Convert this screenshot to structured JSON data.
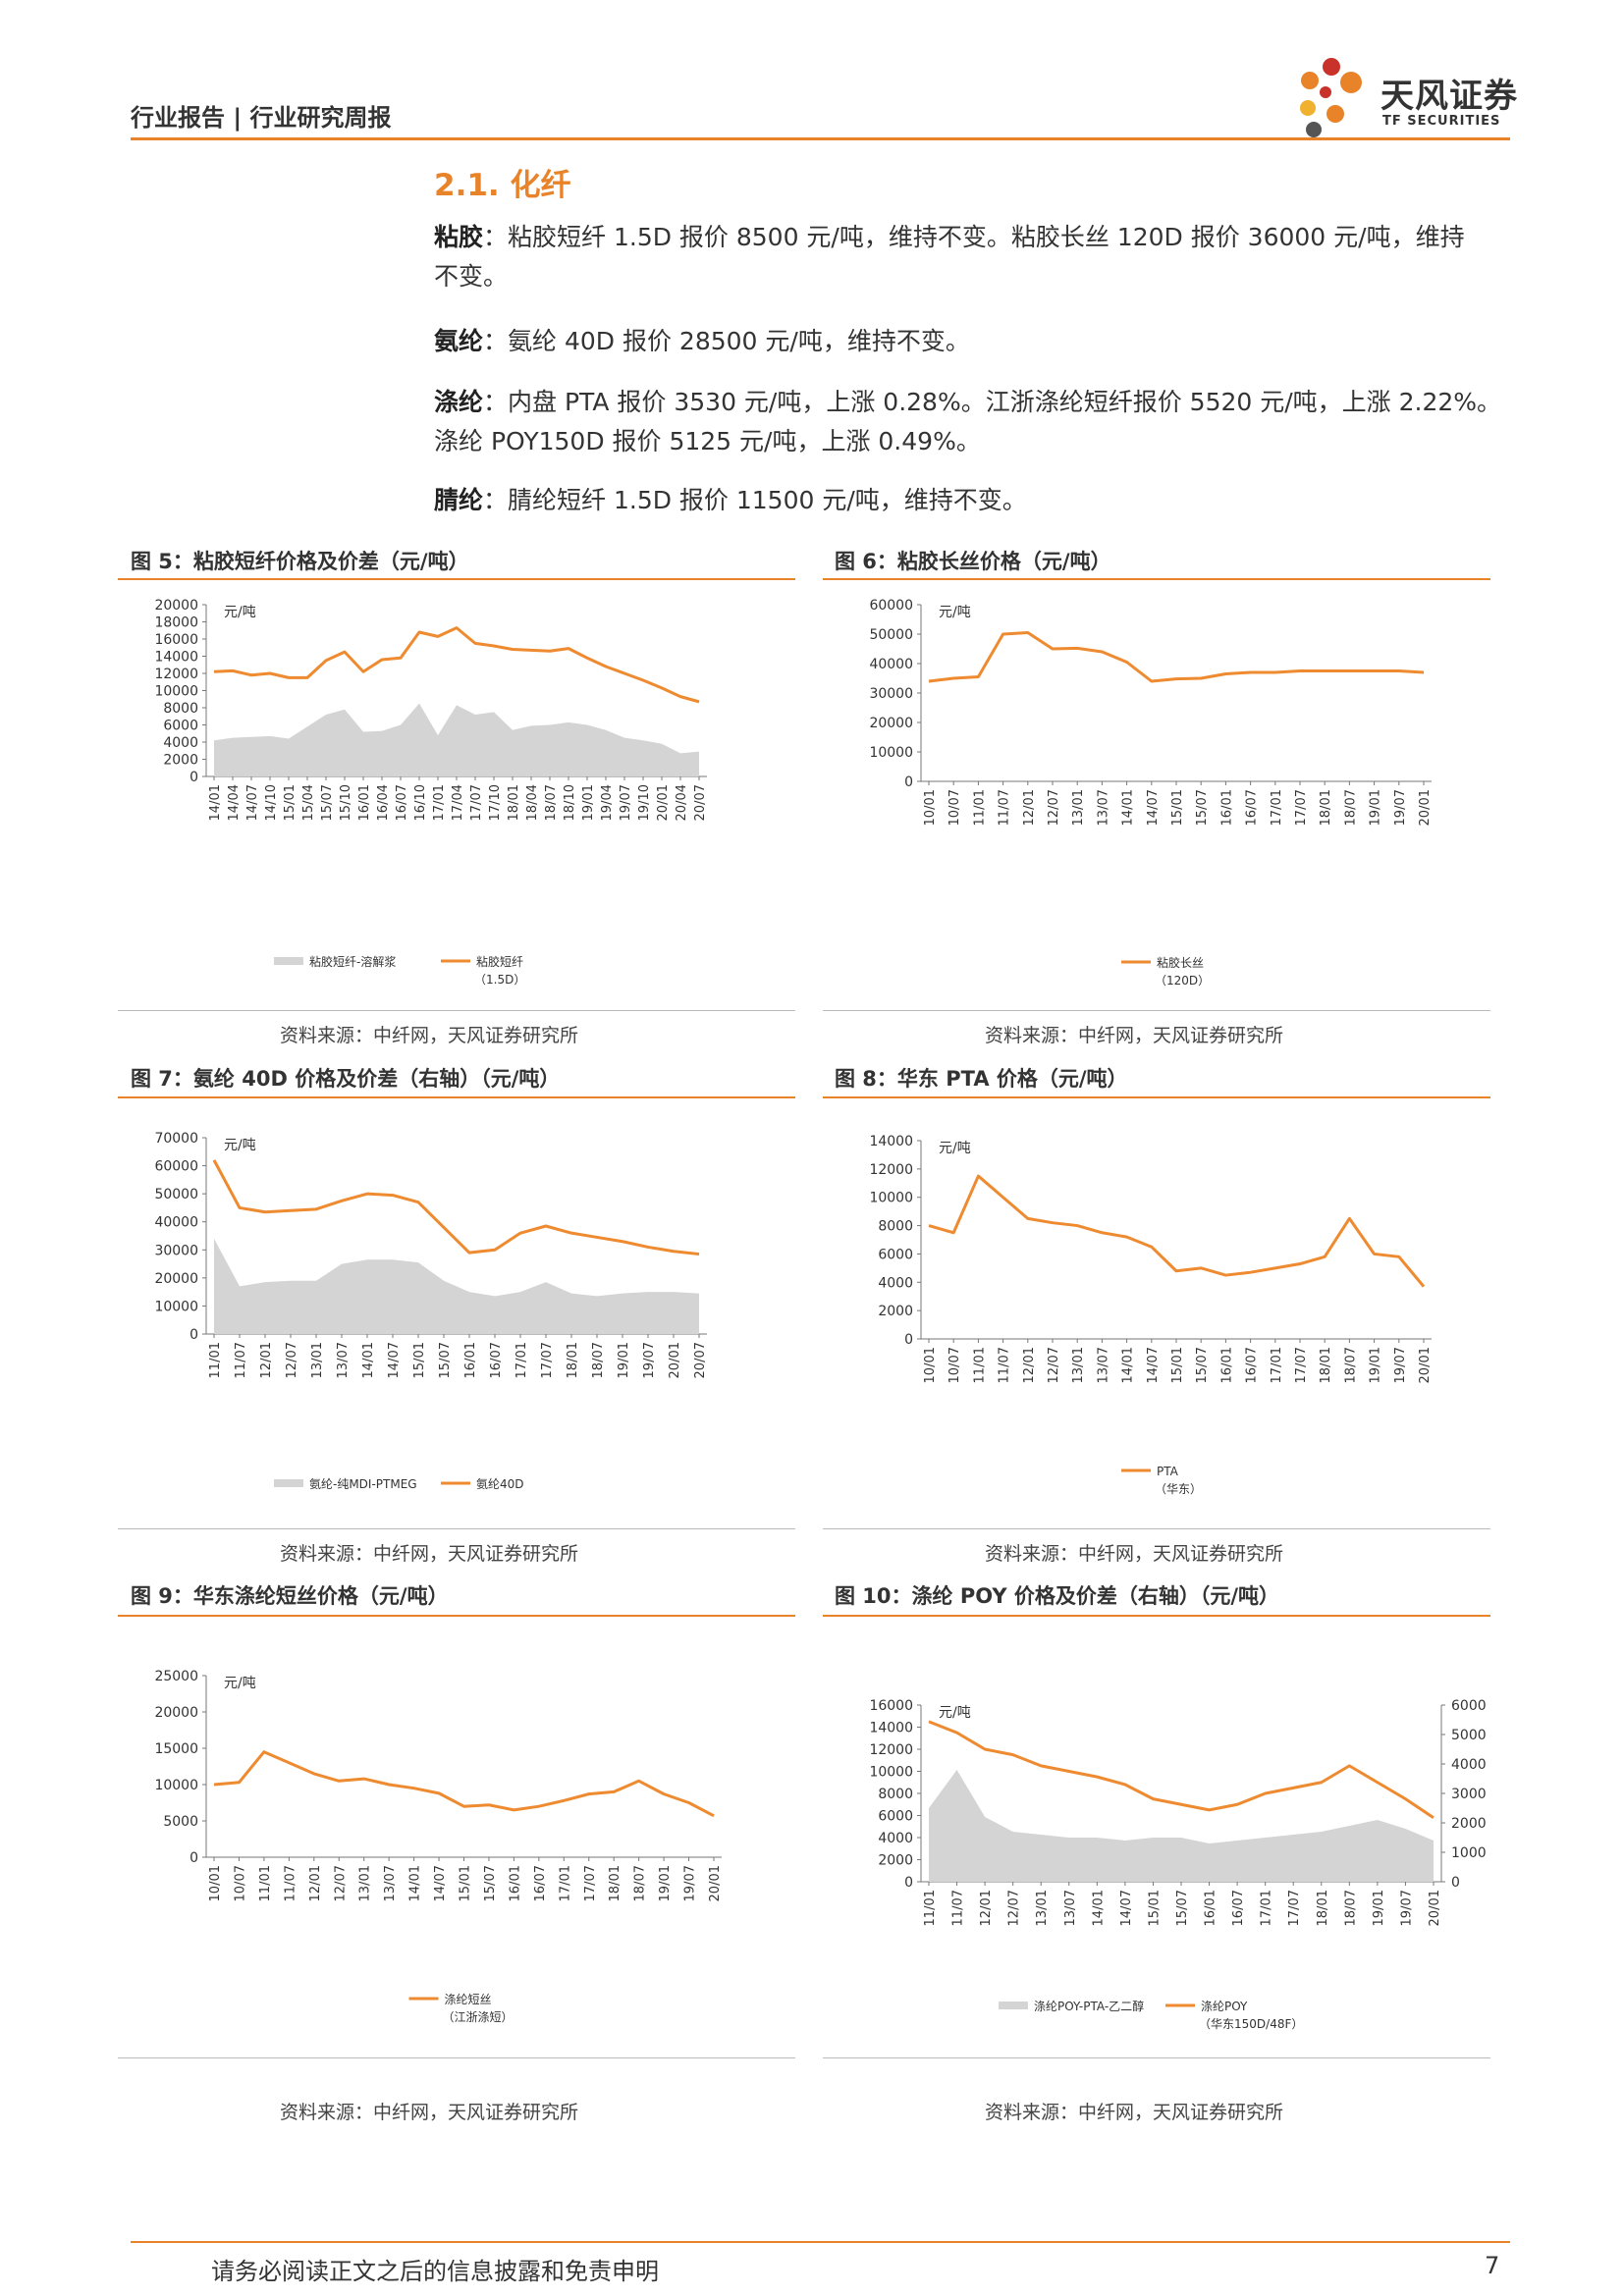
{
  "header": {
    "left": "行业报告 | 行业研究周报",
    "logo_name": "天风证券",
    "logo_sub": "TF SECURITIES"
  },
  "section": {
    "title": "2.1. 化纤"
  },
  "paragraphs": [
    {
      "label": "粘胶",
      "line1": "：粘胶短纤 1.5D 报价 8500 元/吨，维持不变。粘胶长丝 120D 报价 36000 元/吨，维持",
      "line2": "不变。"
    },
    {
      "label": "氨纶",
      "line1": "：氨纶 40D 报价 28500 元/吨，维持不变。",
      "line2": ""
    },
    {
      "label": "涤纶",
      "line1": "：内盘 PTA 报价 3530 元/吨，上涨 0.28%。江浙涤纶短纤报价 5520 元/吨，上涨 2.22%。",
      "line2": "涤纶 POY150D 报价 5125 元/吨，上涨 0.49%。"
    },
    {
      "label": "腈纶",
      "line1": "：腈纶短纤 1.5D 报价 11500 元/吨，维持不变。",
      "line2": ""
    }
  ],
  "colors": {
    "accent": "#e8832a",
    "area": "#d4d4d4",
    "line": "#ee8a2f"
  },
  "footer": {
    "disclaimer": "请务必阅读正文之后的信息披露和免责申明",
    "page": "7"
  },
  "chart_data": [
    {
      "id": "fig5",
      "type": "line",
      "title": "图 5：粘胶短纤价格及价差（元/吨）",
      "source": "资料来源：中纤网，天风证券研究所",
      "ylabel": "元/吨",
      "ylim": [
        0,
        20000
      ],
      "yticks": [
        0,
        2000,
        4000,
        6000,
        8000,
        10000,
        12000,
        14000,
        16000,
        18000,
        20000
      ],
      "categories": [
        "14/01",
        "14/04",
        "14/07",
        "14/10",
        "15/01",
        "15/04",
        "15/07",
        "15/10",
        "16/01",
        "16/04",
        "16/07",
        "16/10",
        "17/01",
        "17/04",
        "17/07",
        "17/10",
        "18/01",
        "18/04",
        "18/07",
        "18/10",
        "19/01",
        "19/04",
        "19/07",
        "19/10",
        "20/01",
        "20/04",
        "20/07"
      ],
      "series": [
        {
          "name": "粘胶短纤-溶解浆",
          "kind": "area",
          "values": [
            4200,
            4500,
            4600,
            4700,
            4400,
            5800,
            7200,
            7800,
            5200,
            5300,
            6000,
            8500,
            4800,
            8300,
            7200,
            7500,
            5400,
            5900,
            6000,
            6300,
            6000,
            5400,
            4500,
            4200,
            3800,
            2700,
            2900
          ]
        },
        {
          "name": "粘胶短纤",
          "name2": "（1.5D）",
          "kind": "line",
          "values": [
            12200,
            12300,
            11800,
            12000,
            11500,
            11500,
            13500,
            14500,
            12200,
            13600,
            13800,
            16800,
            16300,
            17300,
            15500,
            15200,
            14800,
            14700,
            14600,
            14900,
            13800,
            12800,
            12000,
            11200,
            10300,
            9300,
            8700
          ]
        }
      ]
    },
    {
      "id": "fig6",
      "type": "line",
      "title": "图 6：粘胶长丝价格（元/吨）",
      "source": "资料来源：中纤网，天风证券研究所",
      "ylabel": "元/吨",
      "ylim": [
        0,
        60000
      ],
      "yticks": [
        0,
        10000,
        20000,
        30000,
        40000,
        50000,
        60000
      ],
      "categories": [
        "10/01",
        "10/07",
        "11/01",
        "11/07",
        "12/01",
        "12/07",
        "13/01",
        "13/07",
        "14/01",
        "14/07",
        "15/01",
        "15/07",
        "16/01",
        "16/07",
        "17/01",
        "17/07",
        "18/01",
        "18/07",
        "19/01",
        "19/07",
        "20/01"
      ],
      "series": [
        {
          "name": "粘胶长丝",
          "name2": "（120D）",
          "kind": "line",
          "values": [
            34000,
            35000,
            35500,
            50000,
            50500,
            45000,
            45200,
            44000,
            40500,
            34000,
            34800,
            35000,
            36500,
            37000,
            37000,
            37500,
            37500,
            37500,
            37500,
            37500,
            37000
          ]
        }
      ]
    },
    {
      "id": "fig7",
      "type": "line",
      "title": "图 7：氨纶 40D 价格及价差（右轴）（元/吨）",
      "source": "资料来源：中纤网，天风证券研究所",
      "ylabel": "元/吨",
      "ylim": [
        0,
        70000
      ],
      "yticks": [
        0,
        10000,
        20000,
        30000,
        40000,
        50000,
        60000,
        70000
      ],
      "categories": [
        "11/01",
        "11/07",
        "12/01",
        "12/07",
        "13/01",
        "13/07",
        "14/01",
        "14/07",
        "15/01",
        "15/07",
        "16/01",
        "16/07",
        "17/01",
        "17/07",
        "18/01",
        "18/07",
        "19/01",
        "19/07",
        "20/01",
        "20/07"
      ],
      "series": [
        {
          "name": "氨纶-纯MDI-PTMEG",
          "kind": "area",
          "values": [
            34000,
            17000,
            18500,
            19000,
            19000,
            25000,
            26500,
            26500,
            25500,
            19000,
            15000,
            13500,
            15000,
            18500,
            14500,
            13500,
            14500,
            15000,
            15000,
            14500
          ]
        },
        {
          "name": "氨纶40D",
          "kind": "line",
          "values": [
            62000,
            45000,
            43500,
            44000,
            44500,
            47500,
            50000,
            49500,
            47000,
            38000,
            29000,
            30000,
            36000,
            38500,
            36000,
            34500,
            33000,
            31000,
            29500,
            28500
          ]
        }
      ]
    },
    {
      "id": "fig8",
      "type": "line",
      "title": "图 8：华东 PTA 价格（元/吨）",
      "source": "资料来源：中纤网，天风证券研究所",
      "ylabel": "元/吨",
      "ylim": [
        0,
        14000
      ],
      "yticks": [
        0,
        2000,
        4000,
        6000,
        8000,
        10000,
        12000,
        14000
      ],
      "categories": [
        "10/01",
        "10/07",
        "11/01",
        "11/07",
        "12/01",
        "12/07",
        "13/01",
        "13/07",
        "14/01",
        "14/07",
        "15/01",
        "15/07",
        "16/01",
        "16/07",
        "17/01",
        "17/07",
        "18/01",
        "18/07",
        "19/01",
        "19/07",
        "20/01"
      ],
      "series": [
        {
          "name": "PTA",
          "name2": "（华东）",
          "kind": "line",
          "values": [
            8000,
            7500,
            11500,
            10000,
            8500,
            8200,
            8000,
            7500,
            7200,
            6500,
            4800,
            5000,
            4500,
            4700,
            5000,
            5300,
            5800,
            8500,
            6000,
            5800,
            3700
          ]
        }
      ]
    },
    {
      "id": "fig9",
      "type": "line",
      "title": "图 9：华东涤纶短丝价格（元/吨）",
      "source": "资料来源：中纤网，天风证券研究所",
      "ylabel": "元/吨",
      "ylim": [
        0,
        25000
      ],
      "yticks": [
        0,
        5000,
        10000,
        15000,
        20000,
        25000
      ],
      "categories": [
        "10/01",
        "10/07",
        "11/01",
        "11/07",
        "12/01",
        "12/07",
        "13/01",
        "13/07",
        "14/01",
        "14/07",
        "15/01",
        "15/07",
        "16/01",
        "16/07",
        "17/01",
        "17/07",
        "18/01",
        "18/07",
        "19/01",
        "19/07",
        "20/01"
      ],
      "series": [
        {
          "name": "涤纶短丝",
          "name2": "（江浙涤短）",
          "kind": "line",
          "values": [
            10000,
            10300,
            14500,
            13000,
            11500,
            10500,
            10800,
            10000,
            9500,
            8800,
            7000,
            7200,
            6500,
            7000,
            7800,
            8700,
            9000,
            10500,
            8700,
            7500,
            5700
          ]
        }
      ]
    },
    {
      "id": "fig10",
      "type": "line",
      "title": "图 10：涤纶 POY 价格及价差（右轴）（元/吨）",
      "source": "资料来源：中纤网，天风证券研究所",
      "ylabel": "元/吨",
      "ylim": [
        0,
        16000
      ],
      "yticks": [
        0,
        2000,
        4000,
        6000,
        8000,
        10000,
        12000,
        14000,
        16000
      ],
      "y2lim": [
        0,
        6000
      ],
      "y2ticks": [
        0,
        1000,
        2000,
        3000,
        4000,
        5000,
        6000
      ],
      "categories": [
        "11/01",
        "11/07",
        "12/01",
        "12/07",
        "13/01",
        "13/07",
        "14/01",
        "14/07",
        "15/01",
        "15/07",
        "16/01",
        "16/07",
        "17/01",
        "17/07",
        "18/01",
        "18/07",
        "19/01",
        "19/07",
        "20/01"
      ],
      "series": [
        {
          "name": "涤纶POY-PTA-乙二醇",
          "kind": "area",
          "axis": "right",
          "values": [
            2500,
            3800,
            2200,
            1700,
            1600,
            1500,
            1500,
            1400,
            1500,
            1500,
            1300,
            1400,
            1500,
            1600,
            1700,
            1900,
            2100,
            1800,
            1400
          ]
        },
        {
          "name": "涤纶POY",
          "name2": "（华东150D/48F）",
          "kind": "line",
          "values": [
            14500,
            13500,
            12000,
            11500,
            10500,
            10000,
            9500,
            8800,
            7500,
            7000,
            6500,
            7000,
            8000,
            8500,
            9000,
            10500,
            9000,
            7500,
            5800
          ]
        }
      ]
    }
  ]
}
